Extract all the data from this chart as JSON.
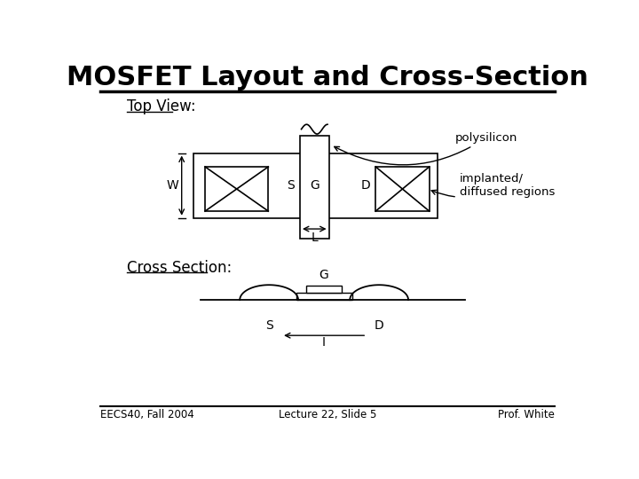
{
  "title": "MOSFET Layout and Cross-Section",
  "bg_color": "#ffffff",
  "title_fontsize": 22,
  "body_fontsize": 11,
  "footer_left": "EECS40, Fall 2004",
  "footer_center": "Lecture 22, Slide 5",
  "footer_right": "Prof. White"
}
